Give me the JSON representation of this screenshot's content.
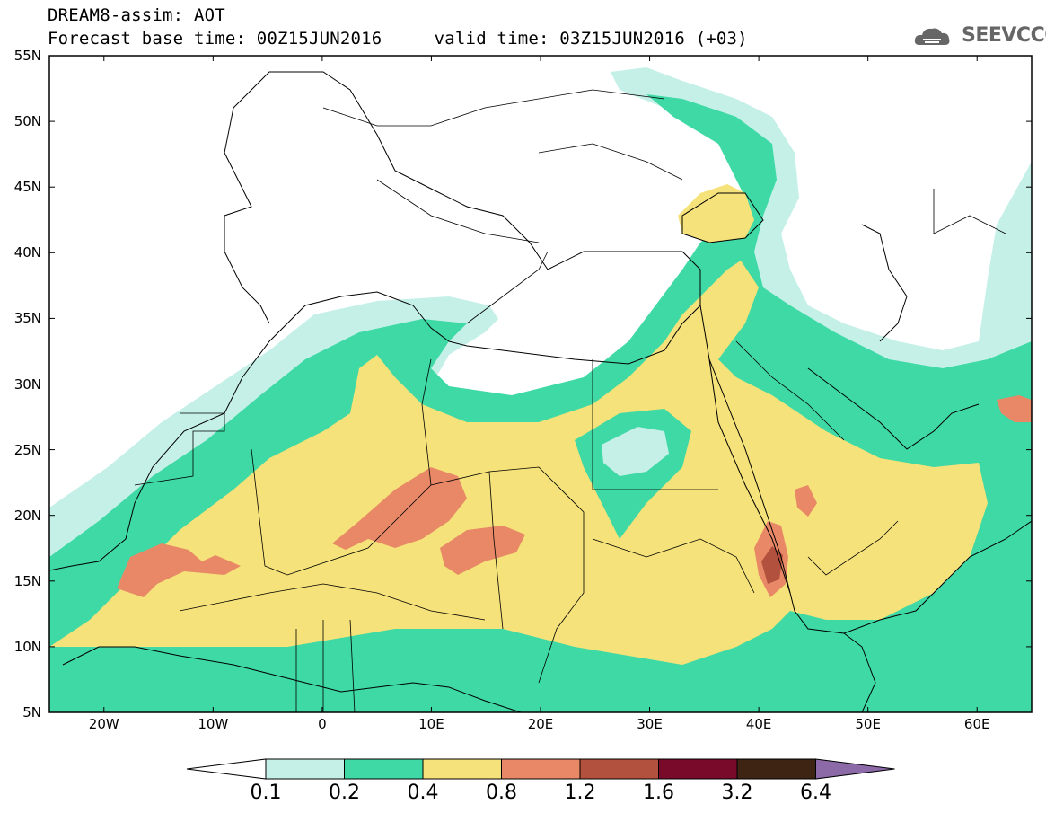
{
  "title_line1": "DREAM8-assim: AOT",
  "title_line2": "Forecast base time: 00Z15JUN2016     valid time: 03Z15JUN2016 (+03)",
  "logo_text": "SEEVCCC",
  "map": {
    "lon_range": [
      -25,
      65
    ],
    "lat_range": [
      5,
      55
    ],
    "lat_ticks": [
      {
        "v": 55,
        "label": "55N"
      },
      {
        "v": 50,
        "label": "50N"
      },
      {
        "v": 45,
        "label": "45N"
      },
      {
        "v": 40,
        "label": "40N"
      },
      {
        "v": 35,
        "label": "35N"
      },
      {
        "v": 30,
        "label": "30N"
      },
      {
        "v": 25,
        "label": "25N"
      },
      {
        "v": 20,
        "label": "20N"
      },
      {
        "v": 15,
        "label": "15N"
      },
      {
        "v": 10,
        "label": "10N"
      },
      {
        "v": 5,
        "label": "5N"
      }
    ],
    "lon_ticks": [
      {
        "v": -20,
        "label": "20W"
      },
      {
        "v": -10,
        "label": "10W"
      },
      {
        "v": 0,
        "label": "0"
      },
      {
        "v": 10,
        "label": "10E"
      },
      {
        "v": 20,
        "label": "20E"
      },
      {
        "v": 30,
        "label": "30E"
      },
      {
        "v": 40,
        "label": "40E"
      },
      {
        "v": 50,
        "label": "50E"
      },
      {
        "v": 60,
        "label": "60E"
      }
    ]
  },
  "colorbar": {
    "levels": [
      "0.1",
      "0.2",
      "0.4",
      "0.8",
      "1.2",
      "1.6",
      "3.2",
      "6.4"
    ],
    "colors": [
      "#ffffff",
      "#c4f0e8",
      "#3ed9a4",
      "#f5e27a",
      "#e88866",
      "#b2513d",
      "#7a0a2a",
      "#3d2413",
      "#8c6aa8"
    ]
  }
}
